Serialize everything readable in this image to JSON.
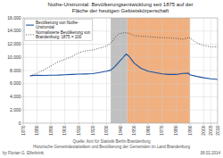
{
  "chart_data": {
    "type": "line",
    "title": "Nuthe-Urstromtal: Bevölkerungsentwicklung seit 1875 auf der\nFläche der heutigen Gebietskörperschaft",
    "x": [
      1875,
      1880,
      1885,
      1890,
      1895,
      1900,
      1905,
      1910,
      1915,
      1920,
      1925,
      1930,
      1933,
      1936,
      1939,
      1942,
      1944,
      1946,
      1950,
      1955,
      1960,
      1965,
      1970,
      1975,
      1980,
      1985,
      1989,
      1990,
      1995,
      2000,
      2005,
      2010
    ],
    "series": [
      {
        "name": "Bevölkerung von Nuthe-\nUrstromtal",
        "color": "#1a4fa0",
        "line_style": "solid",
        "values": [
          7200,
          7280,
          7250,
          7280,
          7300,
          7350,
          7400,
          7450,
          7480,
          7520,
          7700,
          7900,
          8050,
          8600,
          9300,
          10000,
          10500,
          10200,
          9100,
          8300,
          7900,
          7700,
          7500,
          7400,
          7400,
          7550,
          7600,
          7350,
          7100,
          6900,
          6750,
          6650
        ]
      },
      {
        "name": "Normalisierte Bevölkerung von\nBrandenburg: 1875 = 100",
        "color": "#444444",
        "line_style": "dotted",
        "values": [
          7200,
          7600,
          8100,
          8700,
          9300,
          9700,
          10100,
          10700,
          11000,
          11100,
          11400,
          11700,
          12100,
          13000,
          13600,
          13700,
          13750,
          13650,
          13300,
          13200,
          13150,
          13050,
          13000,
          12950,
          12900,
          12750,
          13000,
          12950,
          12200,
          11800,
          11600,
          11600
        ]
      }
    ],
    "shaded_spans": [
      {
        "start": 1933,
        "end": 1945,
        "color": "#c0c0c0"
      },
      {
        "start": 1945,
        "end": 1990,
        "color": "#f0b080"
      }
    ],
    "xlim": [
      1870,
      2010
    ],
    "xticks": [
      1870,
      1880,
      1890,
      1900,
      1910,
      1920,
      1930,
      1940,
      1950,
      1960,
      1970,
      1980,
      1990,
      2000,
      2005,
      2010
    ],
    "ylim": [
      0,
      16000
    ],
    "yticks": [
      0,
      {
        "value": 2000,
        "label": "2.000"
      },
      {
        "value": 4000,
        "label": "4.000"
      },
      {
        "value": 6000,
        "label": "6.000"
      },
      {
        "value": 8000,
        "label": "8.000"
      },
      {
        "value": 10000,
        "label": "10.000"
      },
      {
        "value": 12000,
        "label": "12.000"
      },
      {
        "value": 14000,
        "label": "14.000"
      },
      {
        "value": 16000,
        "label": "16.000"
      }
    ],
    "grid": true,
    "legend": "upper left",
    "annotations": [
      "Quelle: Amt für Statistik Berlin-Brandenburg",
      "Historische Gemeindestatistiken und Bevölkerung der Gemeinden im Land Brandenburg",
      "by Florian G. Elferbrink",
      "08.02.2014"
    ]
  }
}
